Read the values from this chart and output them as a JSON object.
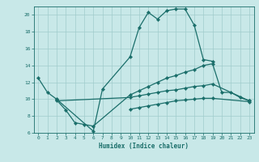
{
  "title": "",
  "xlabel": "Humidex (Indice chaleur)",
  "bg_color": "#c8e8e8",
  "line_color": "#1a6e6a",
  "grid_color": "#a0cccc",
  "xlim": [
    -0.5,
    23.5
  ],
  "ylim": [
    6,
    21
  ],
  "yticks": [
    6,
    8,
    10,
    12,
    14,
    16,
    18,
    20
  ],
  "xticks": [
    0,
    1,
    2,
    3,
    4,
    5,
    6,
    7,
    8,
    9,
    10,
    11,
    12,
    13,
    14,
    15,
    16,
    17,
    18,
    19,
    20,
    21,
    22,
    23
  ],
  "curves": [
    {
      "x": [
        0,
        1,
        2,
        6,
        7,
        10,
        11,
        12,
        13,
        14,
        15,
        16,
        17,
        18,
        19
      ],
      "y": [
        12.5,
        10.8,
        10.0,
        6.2,
        11.2,
        15.0,
        18.5,
        20.3,
        19.5,
        20.5,
        20.7,
        20.7,
        18.8,
        14.7,
        14.5
      ]
    },
    {
      "x": [
        2,
        3,
        4,
        5,
        6,
        10,
        11,
        12,
        13,
        14,
        15,
        16,
        17,
        18,
        19,
        20,
        21,
        22,
        23
      ],
      "y": [
        9.9,
        8.7,
        7.2,
        7.0,
        6.8,
        10.5,
        11.0,
        11.5,
        12.0,
        12.5,
        12.8,
        13.2,
        13.5,
        14.0,
        14.2,
        10.8,
        10.8,
        10.2,
        9.8
      ]
    },
    {
      "x": [
        2,
        10,
        11,
        12,
        13,
        14,
        15,
        16,
        17,
        18,
        19,
        23
      ],
      "y": [
        9.8,
        10.2,
        10.4,
        10.6,
        10.8,
        11.0,
        11.1,
        11.3,
        11.5,
        11.6,
        11.8,
        9.8
      ]
    },
    {
      "x": [
        10,
        11,
        12,
        13,
        14,
        15,
        16,
        17,
        18,
        19,
        23
      ],
      "y": [
        8.8,
        9.0,
        9.2,
        9.4,
        9.6,
        9.8,
        9.9,
        10.0,
        10.1,
        10.1,
        9.7
      ]
    }
  ]
}
